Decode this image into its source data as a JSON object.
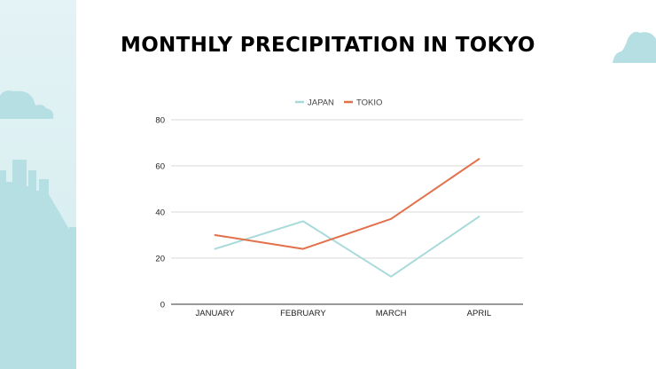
{
  "slide": {
    "title": "MONTHLY PRECIPITATION IN TOKYO"
  },
  "colors": {
    "japan": "#a8dadb",
    "tokio": "#e2704b",
    "panel": "#d9eff1",
    "cloud": "#b5dfe3"
  },
  "chart_data": {
    "type": "line",
    "title": "MONTHLY PRECIPITATION IN TOKYO",
    "categories": [
      "JANUARY",
      "FEBRUARY",
      "MARCH",
      "APRIL"
    ],
    "series": [
      {
        "name": "JAPAN",
        "values": [
          24,
          36,
          12,
          38
        ]
      },
      {
        "name": "TOKIO",
        "values": [
          30,
          24,
          37,
          63
        ]
      }
    ],
    "ylim": [
      0,
      80
    ],
    "yticks": [
      0,
      20,
      40,
      60,
      80
    ],
    "xlabel": "",
    "ylabel": "",
    "grid": true,
    "legend": "top-center"
  }
}
